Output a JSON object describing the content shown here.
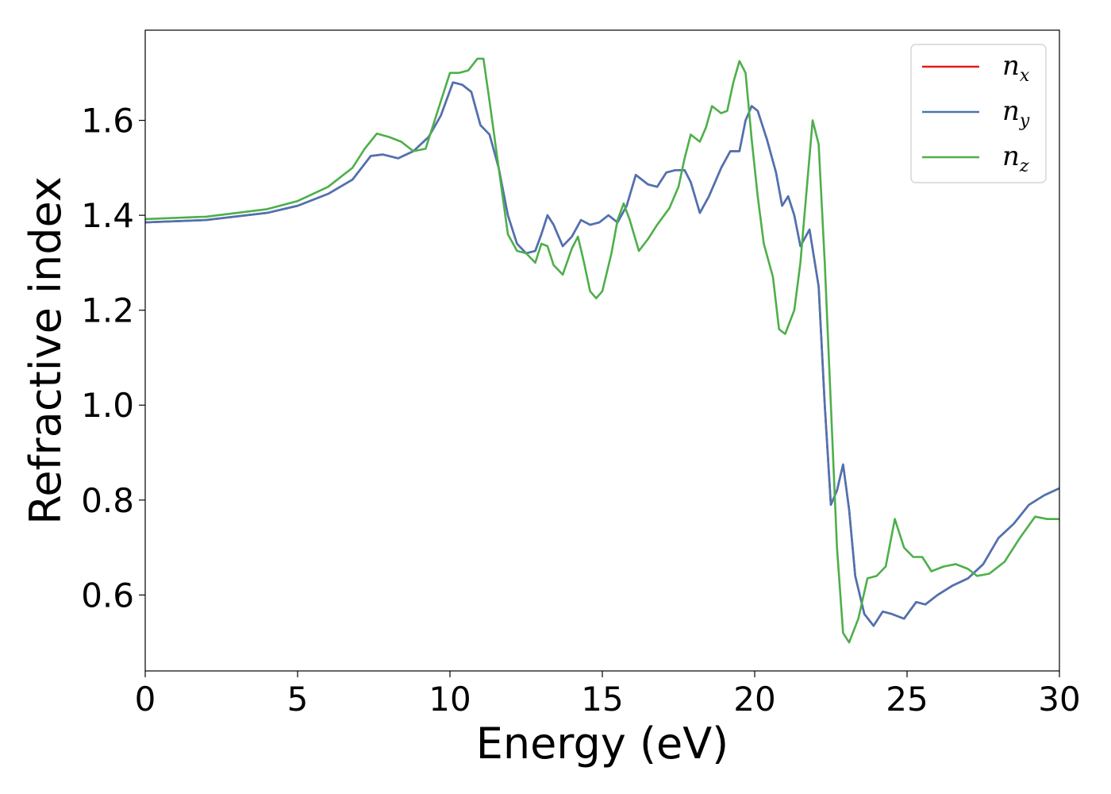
{
  "chart_data": {
    "type": "line",
    "title": "",
    "xlabel": "Energy (eV)",
    "ylabel": "Refractive index",
    "xlim": [
      0,
      30
    ],
    "ylim": [
      0.44,
      1.79
    ],
    "xticks": [
      0,
      5,
      10,
      15,
      20,
      25,
      30
    ],
    "yticks": [
      0.6,
      0.8,
      1.0,
      1.2,
      1.4,
      1.6
    ],
    "grid": false,
    "legend_position": "top-right",
    "series": [
      {
        "name": "n_x",
        "label_base": "n",
        "label_sub": "x",
        "color": "#e41a1c",
        "points": [
          [
            0,
            1.385
          ],
          [
            2,
            1.39
          ],
          [
            4,
            1.405
          ],
          [
            5,
            1.42
          ],
          [
            6,
            1.445
          ],
          [
            6.8,
            1.475
          ],
          [
            7.4,
            1.525
          ],
          [
            7.8,
            1.528
          ],
          [
            8.3,
            1.52
          ],
          [
            8.8,
            1.535
          ],
          [
            9.3,
            1.565
          ],
          [
            9.7,
            1.61
          ],
          [
            10.1,
            1.68
          ],
          [
            10.4,
            1.675
          ],
          [
            10.7,
            1.66
          ],
          [
            11.0,
            1.59
          ],
          [
            11.3,
            1.57
          ],
          [
            11.6,
            1.5
          ],
          [
            11.9,
            1.4
          ],
          [
            12.2,
            1.34
          ],
          [
            12.5,
            1.32
          ],
          [
            12.8,
            1.325
          ],
          [
            13.0,
            1.36
          ],
          [
            13.2,
            1.4
          ],
          [
            13.4,
            1.38
          ],
          [
            13.7,
            1.335
          ],
          [
            14.0,
            1.355
          ],
          [
            14.3,
            1.39
          ],
          [
            14.6,
            1.38
          ],
          [
            14.9,
            1.385
          ],
          [
            15.2,
            1.4
          ],
          [
            15.5,
            1.385
          ],
          [
            15.8,
            1.42
          ],
          [
            16.1,
            1.485
          ],
          [
            16.3,
            1.475
          ],
          [
            16.5,
            1.465
          ],
          [
            16.8,
            1.46
          ],
          [
            17.1,
            1.49
          ],
          [
            17.4,
            1.495
          ],
          [
            17.7,
            1.495
          ],
          [
            17.9,
            1.47
          ],
          [
            18.2,
            1.405
          ],
          [
            18.5,
            1.44
          ],
          [
            18.9,
            1.5
          ],
          [
            19.2,
            1.535
          ],
          [
            19.5,
            1.535
          ],
          [
            19.7,
            1.6
          ],
          [
            19.9,
            1.63
          ],
          [
            20.1,
            1.62
          ],
          [
            20.4,
            1.56
          ],
          [
            20.7,
            1.49
          ],
          [
            20.9,
            1.42
          ],
          [
            21.1,
            1.44
          ],
          [
            21.3,
            1.4
          ],
          [
            21.5,
            1.335
          ],
          [
            21.8,
            1.37
          ],
          [
            22.1,
            1.25
          ],
          [
            22.3,
            1.0
          ],
          [
            22.5,
            0.79
          ],
          [
            22.7,
            0.82
          ],
          [
            22.9,
            0.875
          ],
          [
            23.1,
            0.78
          ],
          [
            23.3,
            0.64
          ],
          [
            23.6,
            0.56
          ],
          [
            23.9,
            0.535
          ],
          [
            24.2,
            0.565
          ],
          [
            24.5,
            0.56
          ],
          [
            24.9,
            0.55
          ],
          [
            25.3,
            0.585
          ],
          [
            25.6,
            0.58
          ],
          [
            26.0,
            0.6
          ],
          [
            26.5,
            0.62
          ],
          [
            27.0,
            0.635
          ],
          [
            27.5,
            0.665
          ],
          [
            28.0,
            0.72
          ],
          [
            28.5,
            0.75
          ],
          [
            29.0,
            0.79
          ],
          [
            29.5,
            0.81
          ],
          [
            30.0,
            0.825
          ]
        ]
      },
      {
        "name": "n_y",
        "label_base": "n",
        "label_sub": "y",
        "color": "#4a74b4",
        "points": [
          [
            0,
            1.385
          ],
          [
            2,
            1.39
          ],
          [
            4,
            1.405
          ],
          [
            5,
            1.42
          ],
          [
            6,
            1.445
          ],
          [
            6.8,
            1.475
          ],
          [
            7.4,
            1.525
          ],
          [
            7.8,
            1.528
          ],
          [
            8.3,
            1.52
          ],
          [
            8.8,
            1.535
          ],
          [
            9.3,
            1.565
          ],
          [
            9.7,
            1.61
          ],
          [
            10.1,
            1.68
          ],
          [
            10.4,
            1.675
          ],
          [
            10.7,
            1.66
          ],
          [
            11.0,
            1.59
          ],
          [
            11.3,
            1.57
          ],
          [
            11.6,
            1.5
          ],
          [
            11.9,
            1.4
          ],
          [
            12.2,
            1.34
          ],
          [
            12.5,
            1.32
          ],
          [
            12.8,
            1.325
          ],
          [
            13.0,
            1.36
          ],
          [
            13.2,
            1.4
          ],
          [
            13.4,
            1.38
          ],
          [
            13.7,
            1.335
          ],
          [
            14.0,
            1.355
          ],
          [
            14.3,
            1.39
          ],
          [
            14.6,
            1.38
          ],
          [
            14.9,
            1.385
          ],
          [
            15.2,
            1.4
          ],
          [
            15.5,
            1.385
          ],
          [
            15.8,
            1.42
          ],
          [
            16.1,
            1.485
          ],
          [
            16.3,
            1.475
          ],
          [
            16.5,
            1.465
          ],
          [
            16.8,
            1.46
          ],
          [
            17.1,
            1.49
          ],
          [
            17.4,
            1.495
          ],
          [
            17.7,
            1.495
          ],
          [
            17.9,
            1.47
          ],
          [
            18.2,
            1.405
          ],
          [
            18.5,
            1.44
          ],
          [
            18.9,
            1.5
          ],
          [
            19.2,
            1.535
          ],
          [
            19.5,
            1.535
          ],
          [
            19.7,
            1.6
          ],
          [
            19.9,
            1.63
          ],
          [
            20.1,
            1.62
          ],
          [
            20.4,
            1.56
          ],
          [
            20.7,
            1.49
          ],
          [
            20.9,
            1.42
          ],
          [
            21.1,
            1.44
          ],
          [
            21.3,
            1.4
          ],
          [
            21.5,
            1.335
          ],
          [
            21.8,
            1.37
          ],
          [
            22.1,
            1.25
          ],
          [
            22.3,
            1.0
          ],
          [
            22.5,
            0.79
          ],
          [
            22.7,
            0.82
          ],
          [
            22.9,
            0.875
          ],
          [
            23.1,
            0.78
          ],
          [
            23.3,
            0.64
          ],
          [
            23.6,
            0.56
          ],
          [
            23.9,
            0.535
          ],
          [
            24.2,
            0.565
          ],
          [
            24.5,
            0.56
          ],
          [
            24.9,
            0.55
          ],
          [
            25.3,
            0.585
          ],
          [
            25.6,
            0.58
          ],
          [
            26.0,
            0.6
          ],
          [
            26.5,
            0.62
          ],
          [
            27.0,
            0.635
          ],
          [
            27.5,
            0.665
          ],
          [
            28.0,
            0.72
          ],
          [
            28.5,
            0.75
          ],
          [
            29.0,
            0.79
          ],
          [
            29.5,
            0.81
          ],
          [
            30.0,
            0.825
          ]
        ]
      },
      {
        "name": "n_z",
        "label_base": "n",
        "label_sub": "z",
        "color": "#4daf4a",
        "points": [
          [
            0,
            1.392
          ],
          [
            2,
            1.397
          ],
          [
            4,
            1.413
          ],
          [
            5,
            1.43
          ],
          [
            6,
            1.46
          ],
          [
            6.8,
            1.5
          ],
          [
            7.2,
            1.54
          ],
          [
            7.6,
            1.572
          ],
          [
            8.0,
            1.565
          ],
          [
            8.4,
            1.555
          ],
          [
            8.8,
            1.535
          ],
          [
            9.2,
            1.54
          ],
          [
            9.6,
            1.62
          ],
          [
            10.0,
            1.7
          ],
          [
            10.3,
            1.7
          ],
          [
            10.6,
            1.705
          ],
          [
            10.9,
            1.73
          ],
          [
            11.1,
            1.73
          ],
          [
            11.3,
            1.64
          ],
          [
            11.6,
            1.5
          ],
          [
            11.9,
            1.36
          ],
          [
            12.2,
            1.325
          ],
          [
            12.5,
            1.32
          ],
          [
            12.8,
            1.3
          ],
          [
            13.0,
            1.34
          ],
          [
            13.2,
            1.335
          ],
          [
            13.4,
            1.295
          ],
          [
            13.7,
            1.275
          ],
          [
            14.0,
            1.33
          ],
          [
            14.2,
            1.355
          ],
          [
            14.4,
            1.3
          ],
          [
            14.6,
            1.24
          ],
          [
            14.8,
            1.225
          ],
          [
            15.0,
            1.24
          ],
          [
            15.3,
            1.32
          ],
          [
            15.5,
            1.39
          ],
          [
            15.7,
            1.425
          ],
          [
            15.9,
            1.39
          ],
          [
            16.2,
            1.325
          ],
          [
            16.5,
            1.35
          ],
          [
            16.8,
            1.38
          ],
          [
            17.2,
            1.415
          ],
          [
            17.5,
            1.46
          ],
          [
            17.7,
            1.52
          ],
          [
            17.9,
            1.57
          ],
          [
            18.2,
            1.555
          ],
          [
            18.4,
            1.585
          ],
          [
            18.6,
            1.63
          ],
          [
            18.9,
            1.615
          ],
          [
            19.1,
            1.62
          ],
          [
            19.3,
            1.68
          ],
          [
            19.5,
            1.725
          ],
          [
            19.7,
            1.7
          ],
          [
            19.9,
            1.56
          ],
          [
            20.1,
            1.44
          ],
          [
            20.3,
            1.34
          ],
          [
            20.6,
            1.27
          ],
          [
            20.8,
            1.16
          ],
          [
            21.0,
            1.15
          ],
          [
            21.3,
            1.2
          ],
          [
            21.5,
            1.3
          ],
          [
            21.7,
            1.45
          ],
          [
            21.9,
            1.6
          ],
          [
            22.1,
            1.55
          ],
          [
            22.3,
            1.3
          ],
          [
            22.5,
            1.0
          ],
          [
            22.7,
            0.7
          ],
          [
            22.9,
            0.52
          ],
          [
            23.1,
            0.5
          ],
          [
            23.4,
            0.55
          ],
          [
            23.7,
            0.635
          ],
          [
            24.0,
            0.64
          ],
          [
            24.3,
            0.66
          ],
          [
            24.6,
            0.76
          ],
          [
            24.9,
            0.7
          ],
          [
            25.2,
            0.68
          ],
          [
            25.5,
            0.68
          ],
          [
            25.8,
            0.65
          ],
          [
            26.2,
            0.66
          ],
          [
            26.6,
            0.665
          ],
          [
            27.0,
            0.655
          ],
          [
            27.3,
            0.64
          ],
          [
            27.7,
            0.645
          ],
          [
            28.2,
            0.67
          ],
          [
            28.7,
            0.72
          ],
          [
            29.2,
            0.765
          ],
          [
            29.6,
            0.76
          ],
          [
            30.0,
            0.76
          ]
        ]
      }
    ]
  }
}
